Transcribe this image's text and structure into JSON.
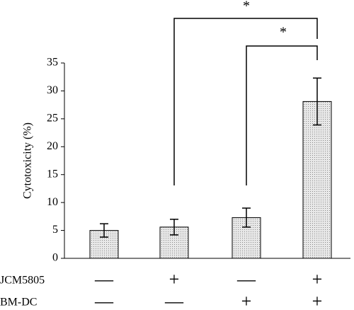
{
  "chart_data": {
    "type": "bar",
    "y_label": "Cytotoxicity (%)",
    "values": [
      5.0,
      5.6,
      7.3,
      28.1
    ],
    "errors": [
      1.2,
      1.4,
      1.7,
      4.2
    ],
    "color": "#d4d4d4",
    "ylim": [
      0,
      35
    ],
    "yticks": [
      0,
      5,
      10,
      15,
      20,
      25,
      30,
      35
    ],
    "conditions": [
      {
        "label": "JCM5805",
        "signs": [
          "—",
          "+",
          "—",
          "+"
        ]
      },
      {
        "label": "BM-DC",
        "signs": [
          "—",
          "—",
          "+",
          "+"
        ]
      }
    ],
    "annotations": [
      "*",
      "*"
    ]
  }
}
